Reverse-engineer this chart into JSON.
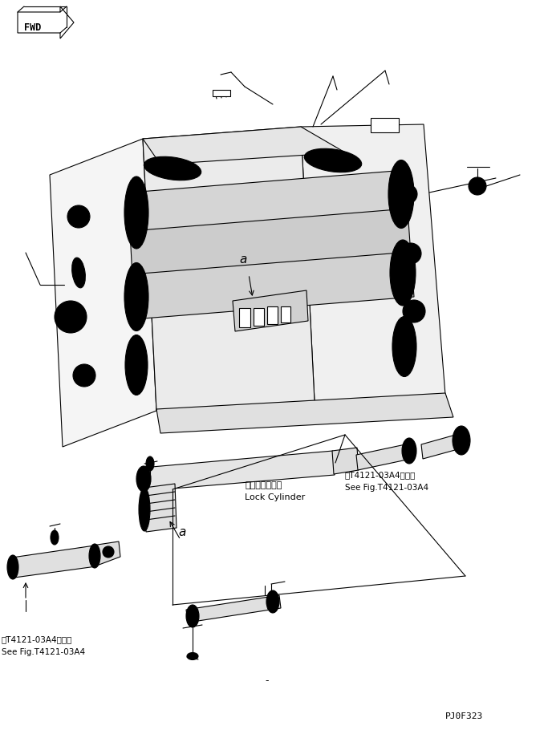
{
  "bg_color": "#ffffff",
  "line_color": "#000000",
  "fig_width": 6.83,
  "fig_height": 9.1,
  "dpi": 100,
  "part_number": "PJ0F323",
  "fwd_label": "FWD",
  "label_a1": "a",
  "label_a2": "a",
  "label_lock_jp": "ロックシリンダ",
  "label_lock_en": "Lock Cylinder",
  "ref_jp1": "笮T4121-03A4図参照",
  "ref_en1": "See Fig.T4121-03A4",
  "ref_jp2": "笮T4121-03A4図参照",
  "ref_en2": "See Fig.T4121-03A4"
}
